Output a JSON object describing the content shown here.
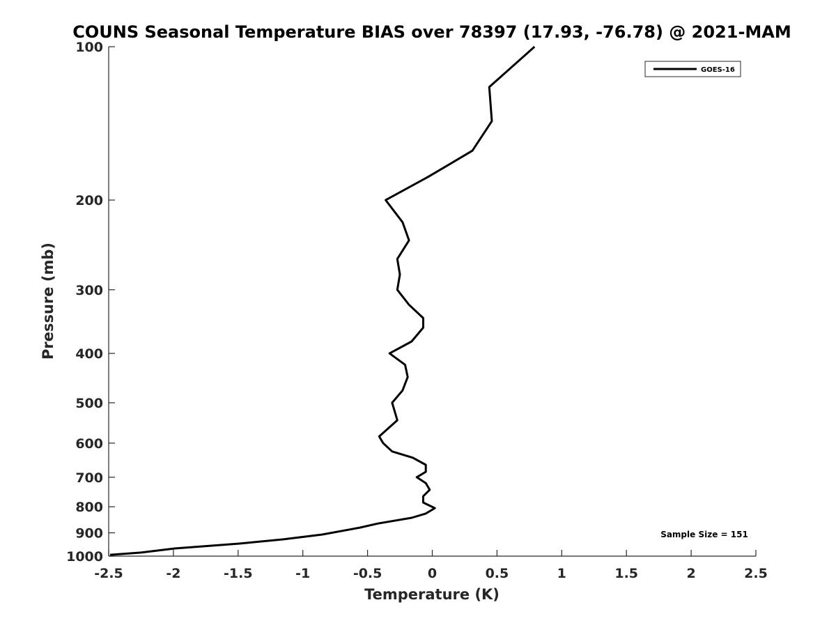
{
  "chart_data": {
    "type": "line",
    "title": "COUNS Seasonal Temperature BIAS over 78397 (17.93, -76.78) @ 2021-MAM",
    "xlabel": "Temperature (K)",
    "ylabel": "Pressure (mb)",
    "xlim": [
      -2.5,
      2.5
    ],
    "ylim": [
      100,
      1000
    ],
    "yscale": "log",
    "y_reversed": true,
    "xticks": [
      -2.5,
      -2,
      -1.5,
      -1,
      -0.5,
      0,
      0.5,
      1,
      1.5,
      2,
      2.5
    ],
    "xtick_labels": [
      "-2.5",
      "-2",
      "-1.5",
      "-1",
      "-0.5",
      "0",
      "0.5",
      "1",
      "1.5",
      "2",
      "2.5"
    ],
    "yticks": [
      100,
      200,
      300,
      400,
      500,
      600,
      700,
      800,
      900,
      1000
    ],
    "ytick_labels": [
      "100",
      "200",
      "300",
      "400",
      "500",
      "600",
      "700",
      "800",
      "900",
      "1000"
    ],
    "legend": {
      "position": "top-right",
      "entries": [
        "GOES-16"
      ]
    },
    "annotation": "Sample Size = 151",
    "grid": false,
    "series": [
      {
        "name": "GOES-16",
        "color": "#000000",
        "pressure": [
          100,
          120,
          140,
          160,
          180,
          200,
          221,
          240,
          261,
          280,
          300,
          321,
          341,
          356,
          379,
          400,
          421,
          445,
          473,
          500,
          541,
          582,
          600,
          623,
          641,
          662,
          683,
          700,
          719,
          741,
          763,
          785,
          805,
          825,
          841,
          863,
          879,
          907,
          927,
          945,
          966,
          984,
          994
        ],
        "temperature": [
          0.79,
          0.44,
          0.46,
          0.31,
          -0.03,
          -0.36,
          -0.23,
          -0.18,
          -0.27,
          -0.25,
          -0.27,
          -0.18,
          -0.07,
          -0.07,
          -0.16,
          -0.33,
          -0.21,
          -0.19,
          -0.23,
          -0.31,
          -0.27,
          -0.41,
          -0.38,
          -0.31,
          -0.15,
          -0.05,
          -0.05,
          -0.12,
          -0.05,
          -0.02,
          -0.07,
          -0.07,
          0.02,
          -0.05,
          -0.16,
          -0.42,
          -0.56,
          -0.85,
          -1.15,
          -1.49,
          -1.99,
          -2.25,
          -2.49
        ]
      }
    ]
  }
}
